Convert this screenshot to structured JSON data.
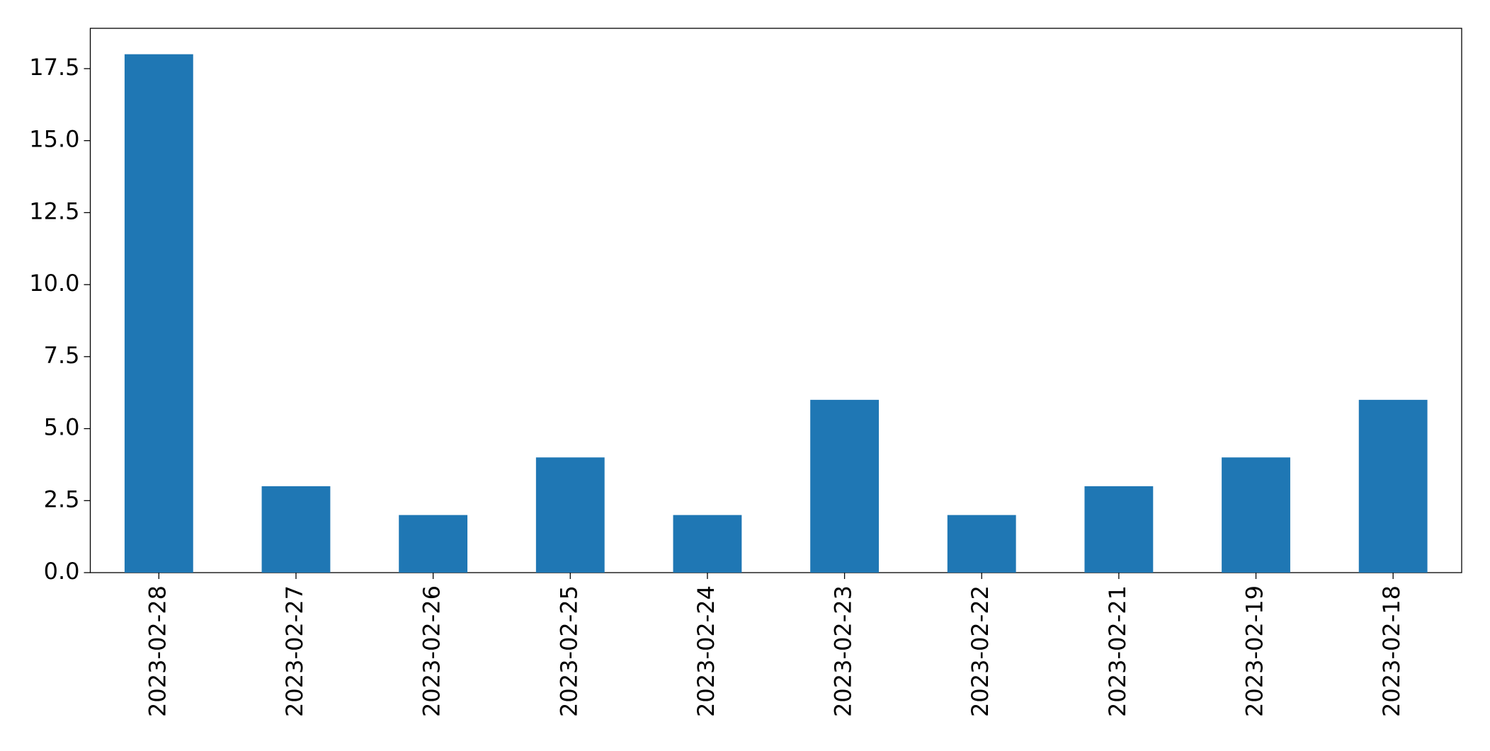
{
  "chart_data": {
    "type": "bar",
    "categories": [
      "2023-02-28",
      "2023-02-27",
      "2023-02-26",
      "2023-02-25",
      "2023-02-24",
      "2023-02-23",
      "2023-02-22",
      "2023-02-21",
      "2023-02-19",
      "2023-02-18"
    ],
    "values": [
      18,
      3,
      2,
      4,
      2,
      6,
      2,
      3,
      4,
      6
    ],
    "color": "#1f77b4",
    "ylim": [
      0,
      18.9
    ],
    "yticks": [
      {
        "value": 0,
        "label": "0.0"
      },
      2.5,
      {
        "value": 5,
        "label": "5.0"
      },
      7.5,
      {
        "value": 10,
        "label": "10.0"
      },
      12.5,
      {
        "value": 15,
        "label": "15.0"
      },
      17.5
    ],
    "grid": false
  }
}
